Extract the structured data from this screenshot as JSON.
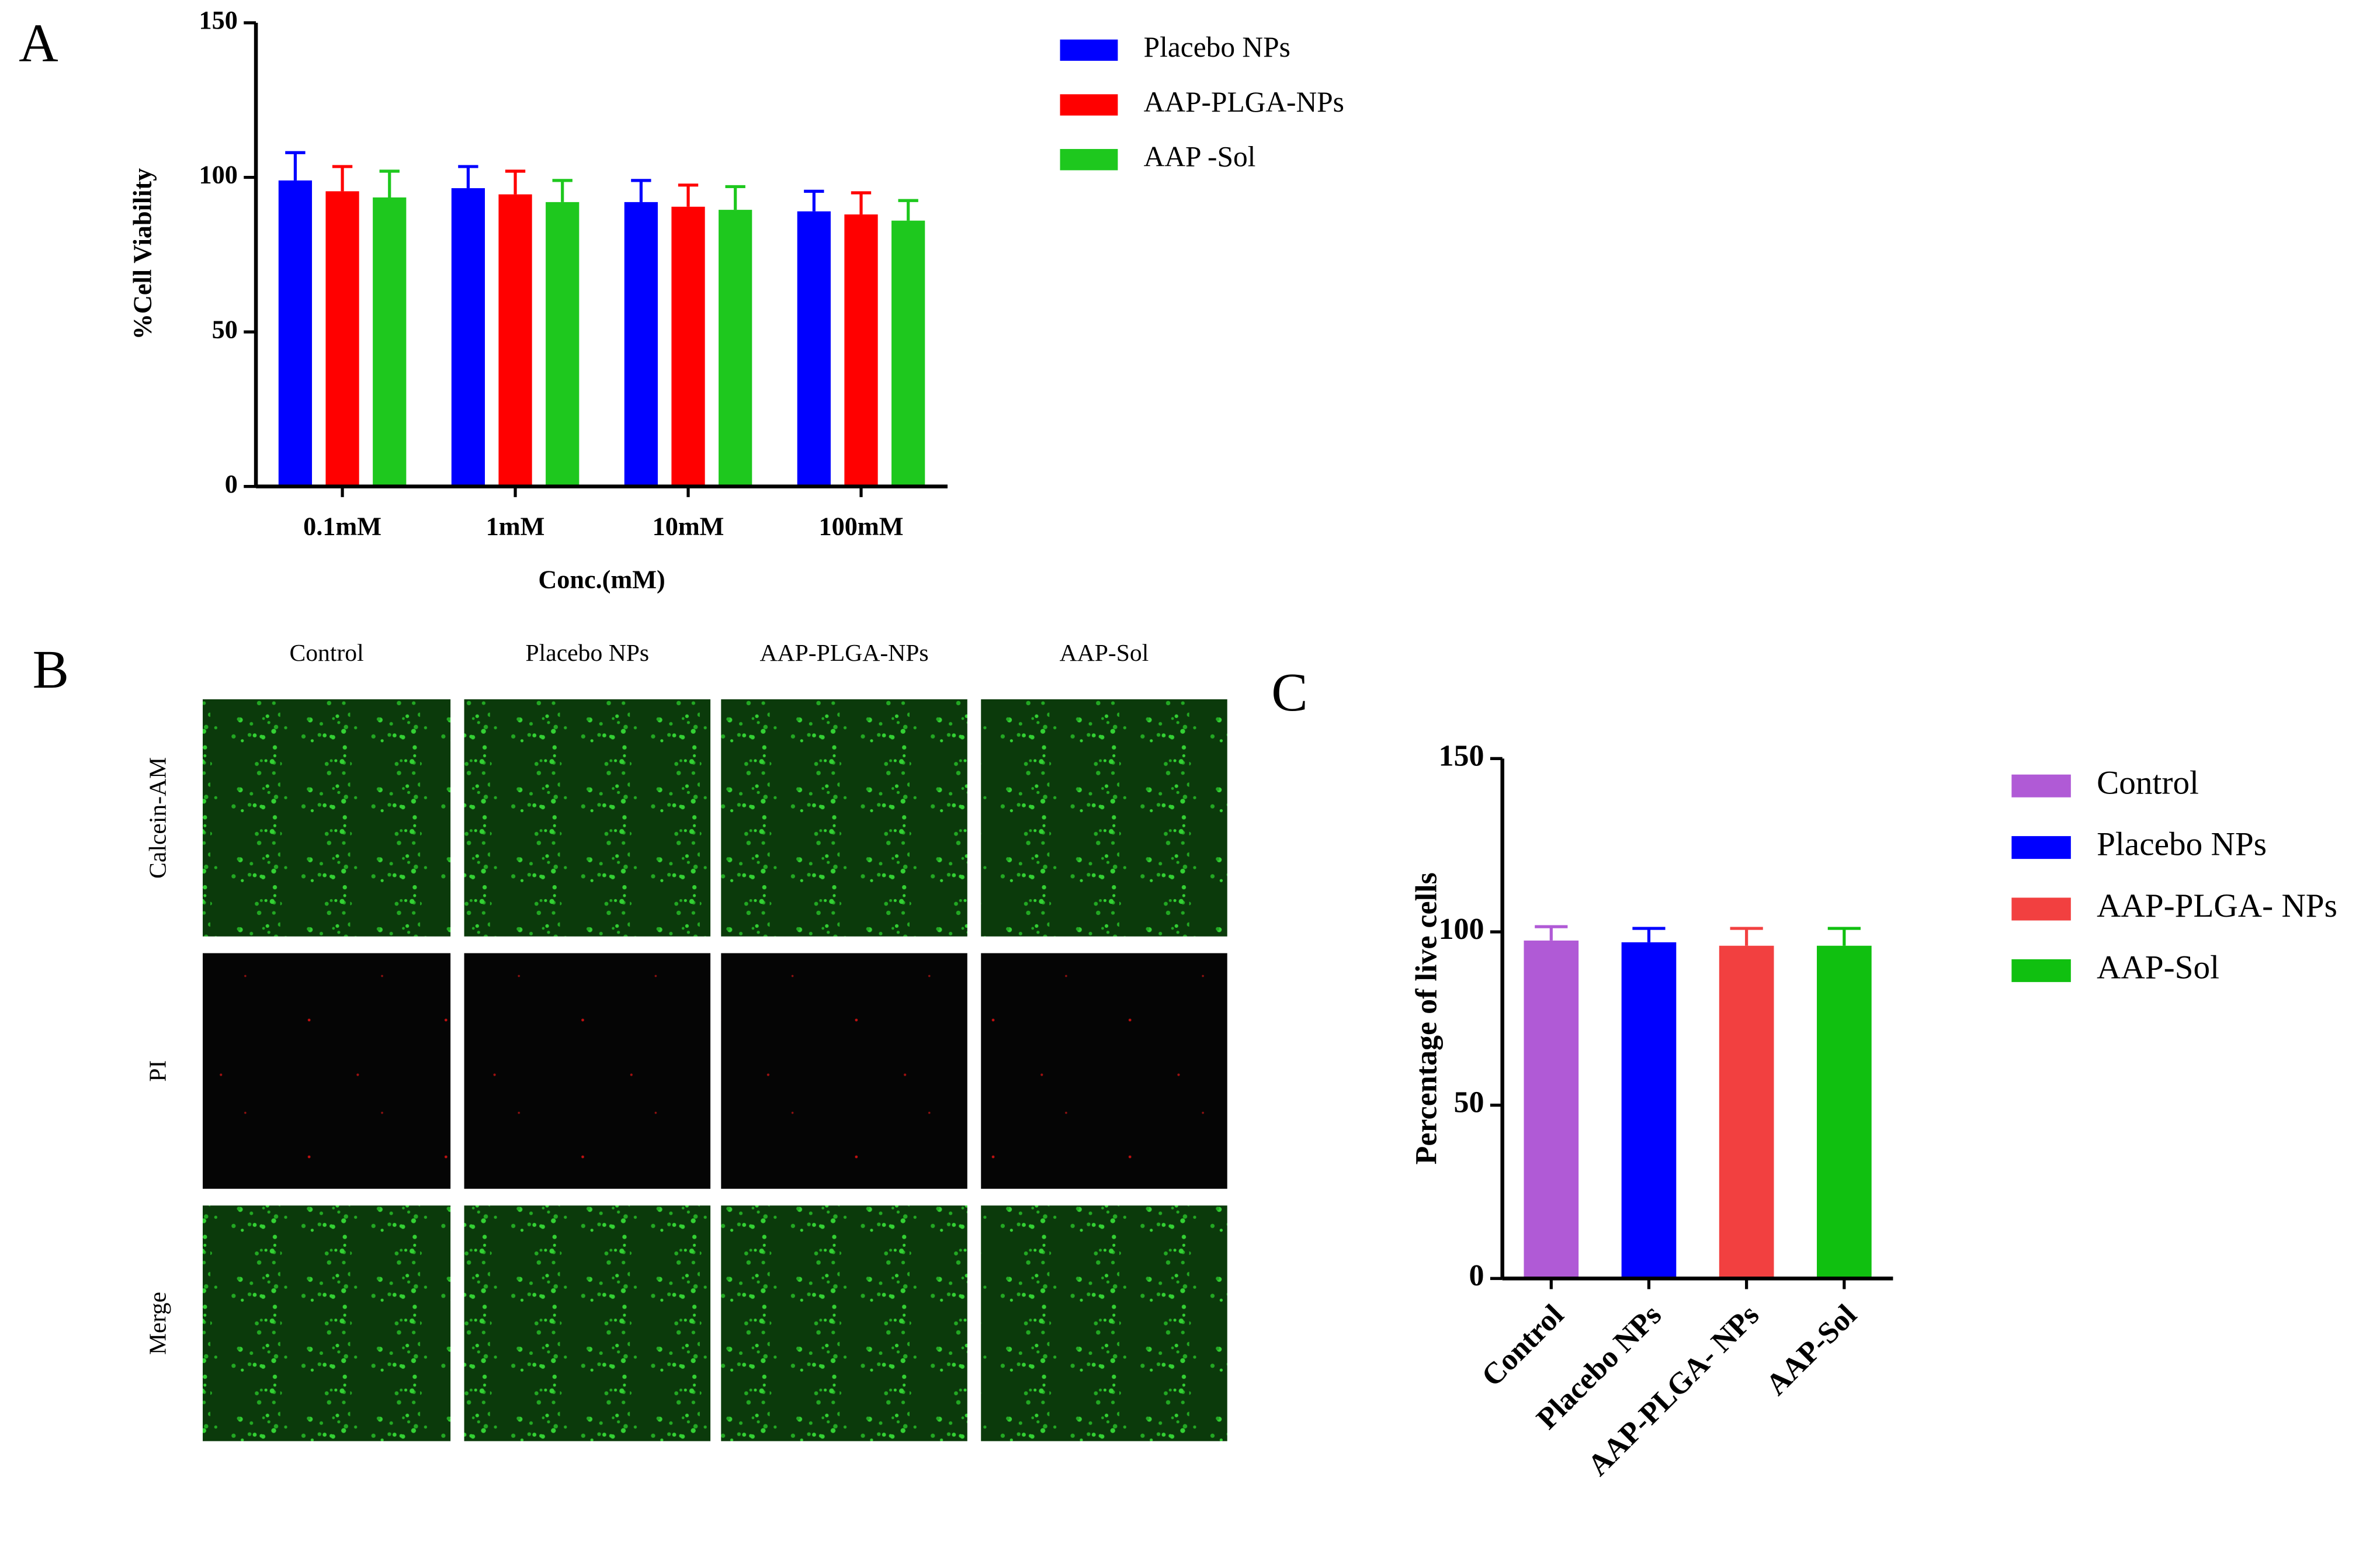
{
  "panel_labels": [
    "A",
    "B",
    "C"
  ],
  "chart_data": [
    {
      "type": "bar",
      "xlabel": "Conc.(mM)",
      "ylabel": "%Cell Viability",
      "categories": [
        "0.1mM",
        "1mM",
        "10mM",
        "100mM"
      ],
      "series": [
        {
          "name": "Placebo NPs",
          "color": "#0000ff",
          "values": [
            99,
            96.5,
            92,
            89
          ],
          "errors": [
            9,
            7,
            7,
            6.5
          ]
        },
        {
          "name": "AAP-PLGA-NPs",
          "color": "#ff0000",
          "values": [
            95.5,
            94.5,
            90.5,
            88
          ],
          "errors": [
            8,
            7.5,
            7,
            7
          ]
        },
        {
          "name": "AAP -Sol",
          "color": "#1ec81e",
          "values": [
            93.5,
            92,
            89.5,
            86
          ],
          "errors": [
            8.5,
            7,
            7.5,
            6.5
          ]
        }
      ],
      "ylim": [
        0,
        150
      ],
      "yticks": [
        0,
        50,
        100,
        150
      ],
      "legend": "right"
    },
    {
      "type": "bar",
      "ylabel": "Percentage of live cells",
      "categories": [
        "Control",
        "Placebo NPs",
        "AAP-PLGA- NPs",
        "AAP-Sol"
      ],
      "values": [
        97.5,
        97,
        96,
        96
      ],
      "errors": [
        4,
        4,
        5,
        5
      ],
      "colors": [
        "#b05ad6",
        "#0000ff",
        "#f24040",
        "#10c010"
      ],
      "ylim": [
        0,
        150
      ],
      "yticks": [
        0,
        50,
        100,
        150
      ],
      "legend": "right"
    }
  ],
  "microscopy": {
    "columns": [
      "Control",
      "Placebo NPs",
      "AAP-PLGA-NPs",
      "AAP-Sol"
    ],
    "rows": [
      "Calcein-AM",
      "PI",
      "Merge"
    ]
  }
}
